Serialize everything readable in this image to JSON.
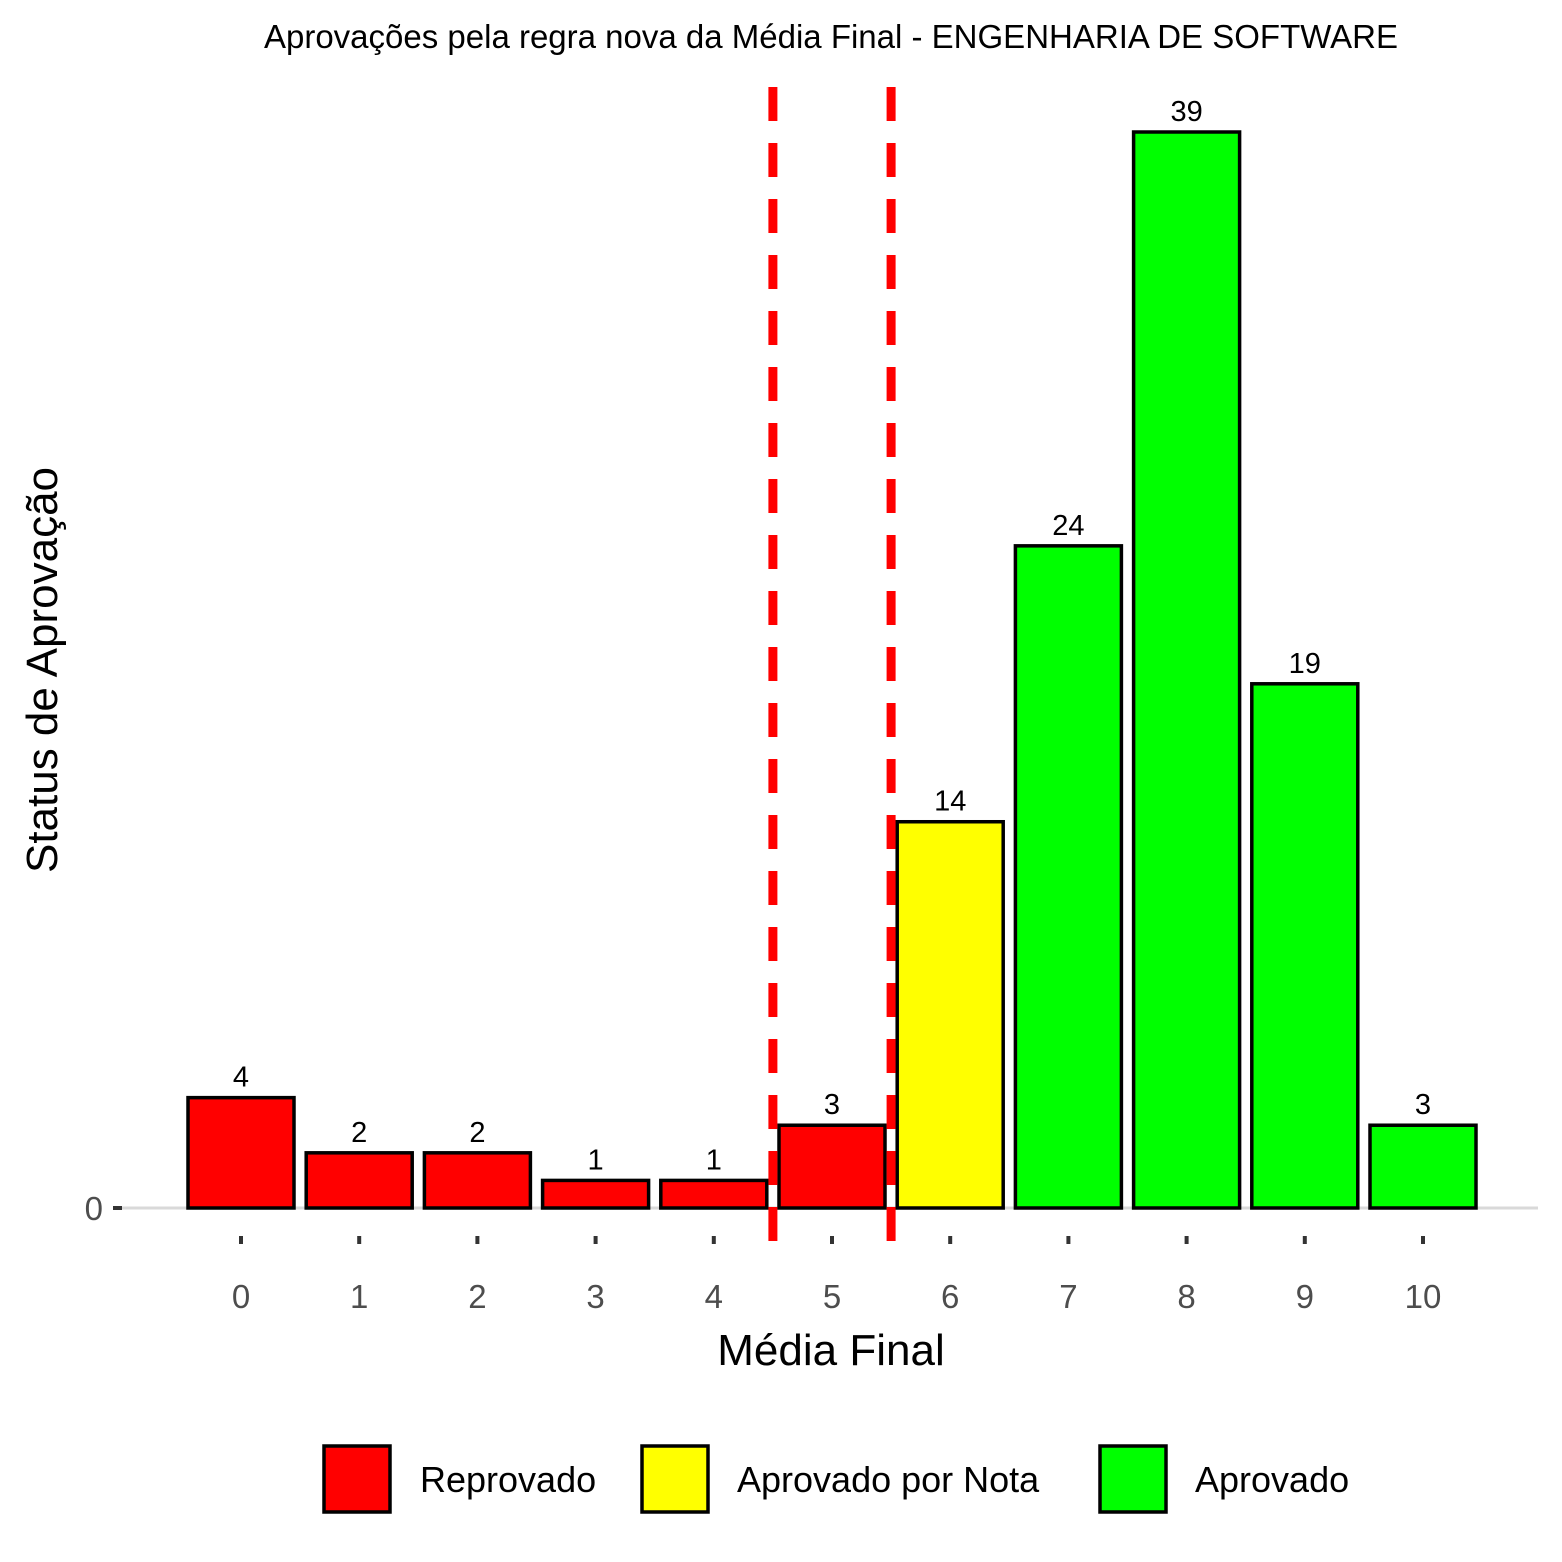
{
  "chart_data": {
    "type": "bar",
    "title": "Aprovações pela regra nova da Média Final - ENGENHARIA DE SOFTWARE",
    "xlabel": "Média Final",
    "ylabel": "Status de Aprovação",
    "categories": [
      "0",
      "1",
      "2",
      "3",
      "4",
      "5",
      "6",
      "7",
      "8",
      "9",
      "10"
    ],
    "values": [
      4,
      2,
      2,
      1,
      1,
      3,
      14,
      24,
      39,
      19,
      3
    ],
    "status": [
      "Reprovado",
      "Reprovado",
      "Reprovado",
      "Reprovado",
      "Reprovado",
      "Reprovado",
      "Aprovado por Nota",
      "Aprovado",
      "Aprovado",
      "Aprovado",
      "Aprovado"
    ],
    "y_ticks": [
      0
    ],
    "ylim": [
      0,
      39
    ],
    "reference_lines_x": [
      4.5,
      5.5
    ],
    "reference_line_style": "dashed",
    "reference_line_color": "#FF0000",
    "legend": {
      "position": "bottom",
      "entries": [
        {
          "label": "Reprovado",
          "color": "#FF0000"
        },
        {
          "label": "Aprovado por Nota",
          "color": "#FFFF00"
        },
        {
          "label": "Aprovado",
          "color": "#00FF00"
        }
      ]
    },
    "grid": false
  }
}
